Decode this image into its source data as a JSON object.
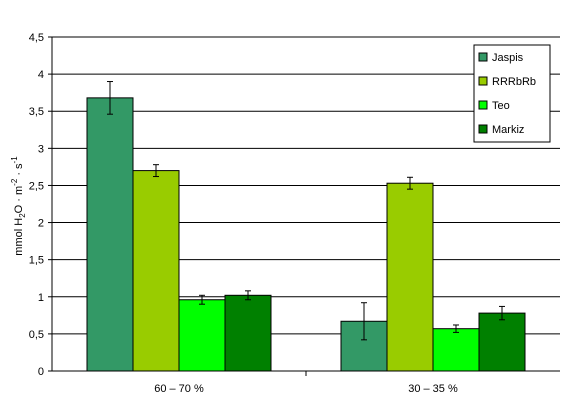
{
  "chart_data": {
    "type": "bar",
    "categories": [
      "60 – 70 %",
      "30 – 35 %"
    ],
    "series": [
      {
        "name": "Jaspis",
        "values": [
          3.68,
          0.67
        ],
        "errors": [
          0.22,
          0.25
        ],
        "color": "#339966"
      },
      {
        "name": "RRRbRb",
        "values": [
          2.7,
          2.53
        ],
        "errors": [
          0.08,
          0.08
        ],
        "color": "#99CC00"
      },
      {
        "name": "Teo",
        "values": [
          0.96,
          0.57
        ],
        "errors": [
          0.06,
          0.05
        ],
        "color": "#00FF00"
      },
      {
        "name": "Markiz",
        "values": [
          1.02,
          0.78
        ],
        "errors": [
          0.06,
          0.09
        ],
        "color": "#008000"
      }
    ],
    "ylabel": "mmol H2O · m⁻² · s⁻¹",
    "ylim": [
      0,
      4.5
    ],
    "yticks": [
      "0",
      "0,5",
      "1",
      "1,5",
      "2",
      "2,5",
      "3",
      "3,5",
      "4",
      "4,5"
    ],
    "grid": true,
    "legend_position": "top-right"
  }
}
